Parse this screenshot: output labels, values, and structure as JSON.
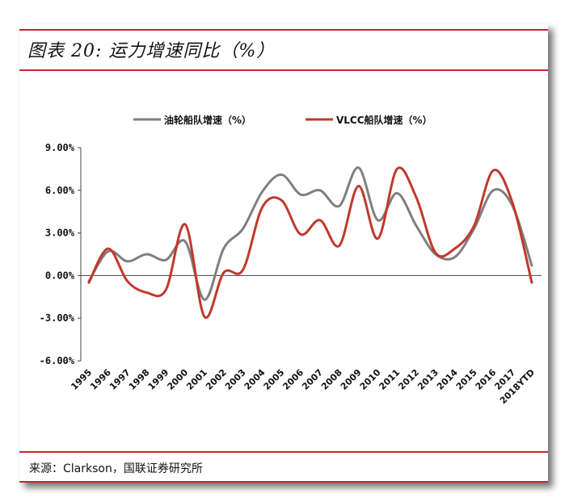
{
  "header": {
    "title": "图表 20: 运力增速同比（%）"
  },
  "footer": {
    "source": "来源：Clarkson，国联证券研究所"
  },
  "colors": {
    "accent": "#c0282e",
    "series_gray": "#7f7f7f",
    "series_red": "#c0392b"
  },
  "chart_data": {
    "type": "line",
    "smooth": true,
    "categories": [
      "1995",
      "1996",
      "1997",
      "1998",
      "1999",
      "2000",
      "2001",
      "2002",
      "2003",
      "2004",
      "2005",
      "2006",
      "2007",
      "2008",
      "2009",
      "2010",
      "2011",
      "2012",
      "2013",
      "2014",
      "2015",
      "2016",
      "2017",
      "2018YTD"
    ],
    "series": [
      {
        "name": "油轮船队增速（%）",
        "color": "#7f7f7f",
        "values": [
          -0.4,
          1.7,
          1.0,
          1.5,
          1.1,
          2.4,
          -1.7,
          1.9,
          3.3,
          5.9,
          7.1,
          5.7,
          6.0,
          4.9,
          7.6,
          3.9,
          5.8,
          3.5,
          1.5,
          1.3,
          3.3,
          6.0,
          4.9,
          0.7
        ]
      },
      {
        "name": "VLCC船队增速（%）",
        "color": "#c0392b",
        "values": [
          -0.5,
          1.9,
          -0.4,
          -1.2,
          -1.0,
          3.6,
          -2.9,
          0.2,
          0.4,
          4.8,
          5.3,
          2.9,
          3.9,
          2.1,
          6.3,
          2.6,
          7.5,
          5.5,
          1.6,
          1.9,
          3.5,
          7.4,
          5.1,
          -0.5
        ]
      }
    ],
    "y_ticks": [
      "9.00%",
      "6.00%",
      "3.00%",
      "0.00%",
      "-3.00%",
      "-6.00%"
    ],
    "ylim": [
      -6,
      9
    ],
    "y_step": 3,
    "grid": false,
    "legend_position": "top-center"
  }
}
